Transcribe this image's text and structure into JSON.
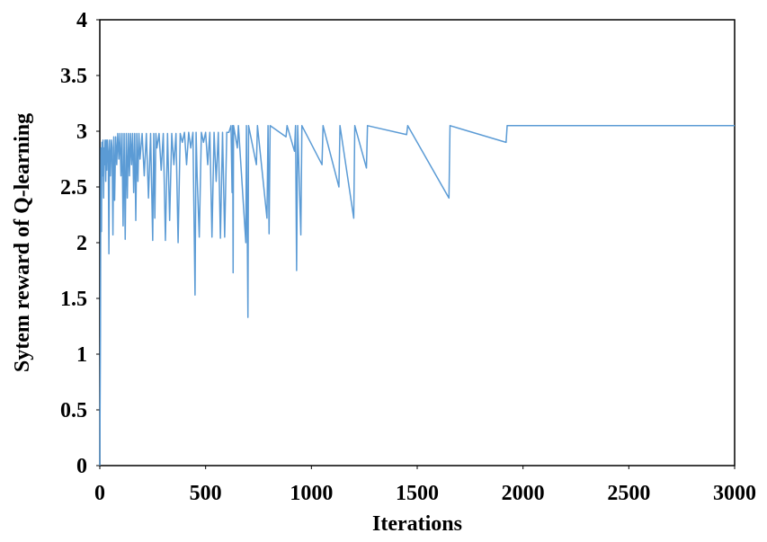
{
  "chart_data": {
    "type": "line",
    "xlabel": "Iterations",
    "ylabel": "Sytem reward of Q-learning",
    "xlim": [
      0,
      3000
    ],
    "xticks": [
      0,
      500,
      1000,
      1500,
      2000,
      2500,
      3000
    ],
    "ylim": [
      0,
      4
    ],
    "yticks": [
      0,
      0.5,
      1,
      1.5,
      2,
      2.5,
      3,
      3.5,
      4
    ],
    "grid": false,
    "series": [
      {
        "color": "#5b9bd5",
        "x": [
          0,
          3,
          5,
          8,
          10,
          12,
          15,
          18,
          20,
          22,
          25,
          28,
          30,
          33,
          36,
          40,
          43,
          46,
          50,
          55,
          58,
          62,
          66,
          70,
          75,
          80,
          85,
          90,
          95,
          100,
          105,
          110,
          115,
          120,
          125,
          130,
          135,
          140,
          145,
          150,
          155,
          160,
          165,
          170,
          175,
          180,
          185,
          190,
          200,
          210,
          220,
          230,
          240,
          250,
          255,
          260,
          265,
          270,
          280,
          290,
          300,
          310,
          320,
          330,
          340,
          350,
          360,
          370,
          380,
          390,
          400,
          410,
          420,
          430,
          440,
          450,
          455,
          460,
          470,
          480,
          490,
          500,
          510,
          520,
          530,
          540,
          550,
          560,
          570,
          580,
          590,
          600,
          610,
          620,
          625,
          628,
          630,
          632,
          650,
          655,
          690,
          693,
          700,
          703,
          740,
          745,
          790,
          795,
          800,
          805,
          880,
          885,
          920,
          925,
          930,
          935,
          950,
          955,
          1050,
          1055,
          1130,
          1135,
          1200,
          1205,
          1260,
          1265,
          1450,
          1455,
          1650,
          1655,
          1920,
          1925,
          3000
        ],
        "values": [
          0,
          1.18,
          2.85,
          2.1,
          2.9,
          2.6,
          2.92,
          2.4,
          2.85,
          2.7,
          2.92,
          2.55,
          2.92,
          2.65,
          2.92,
          2.8,
          1.9,
          2.92,
          2.6,
          2.92,
          2.85,
          2.07,
          2.95,
          2.38,
          2.95,
          2.7,
          2.98,
          2.75,
          2.98,
          2.6,
          2.98,
          2.15,
          2.98,
          2.03,
          2.98,
          2.4,
          2.98,
          2.6,
          2.98,
          2.7,
          2.98,
          2.45,
          2.98,
          2.2,
          2.98,
          2.55,
          2.98,
          2.75,
          2.98,
          2.6,
          2.98,
          2.4,
          2.98,
          2.02,
          2.98,
          2.22,
          2.98,
          2.85,
          2.98,
          2.65,
          2.98,
          2.02,
          2.98,
          2.2,
          2.98,
          2.7,
          2.98,
          2.0,
          2.98,
          2.9,
          2.99,
          2.7,
          2.99,
          2.85,
          2.99,
          1.53,
          2.99,
          2.6,
          2.05,
          2.99,
          2.9,
          2.99,
          2.7,
          2.99,
          2.05,
          2.99,
          2.55,
          2.99,
          2.04,
          2.99,
          2.05,
          2.99,
          2.99,
          3.05,
          2.45,
          3.05,
          1.73,
          3.05,
          2.85,
          3.05,
          2.0,
          3.05,
          1.33,
          3.05,
          2.7,
          3.05,
          2.22,
          3.05,
          2.08,
          3.05,
          2.95,
          3.05,
          2.82,
          3.05,
          1.75,
          3.05,
          2.07,
          3.05,
          2.7,
          3.05,
          2.5,
          3.05,
          2.22,
          3.05,
          2.67,
          3.05,
          2.97,
          3.05,
          2.4,
          3.05,
          2.9,
          3.05,
          3.05
        ]
      }
    ]
  }
}
